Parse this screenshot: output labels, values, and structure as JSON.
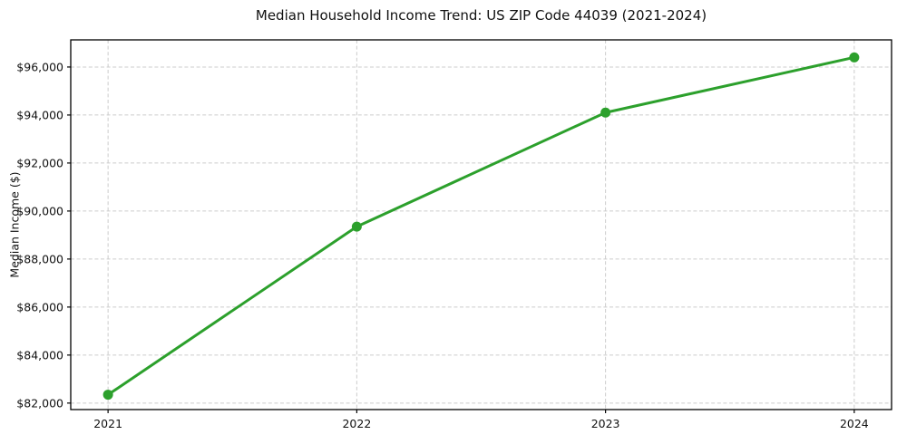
{
  "chart_data": {
    "type": "line",
    "title": "Median Household Income Trend: US ZIP Code 44039 (2021-2024)",
    "ylabel": "Median Income ($)",
    "xlabel": "",
    "x": [
      2021,
      2022,
      2023,
      2024
    ],
    "y": [
      82350,
      89350,
      94100,
      96400
    ],
    "xticks": [
      2021,
      2022,
      2023,
      2024
    ],
    "xtick_labels": [
      "2021",
      "2022",
      "2023",
      "2024"
    ],
    "yticks": [
      82000,
      84000,
      86000,
      88000,
      90000,
      92000,
      94000,
      96000
    ],
    "ytick_labels": [
      "$82,000",
      "$84,000",
      "$86,000",
      "$88,000",
      "$90,000",
      "$92,000",
      "$94,000",
      "$96,000"
    ],
    "xlim": [
      2020.85,
      2024.15
    ],
    "ylim": [
      81730,
      97130
    ],
    "grid": true,
    "legend": false,
    "line_color": "#2ca02c",
    "marker": "circle",
    "marker_radius": 5.5,
    "background": "#ffffff"
  }
}
